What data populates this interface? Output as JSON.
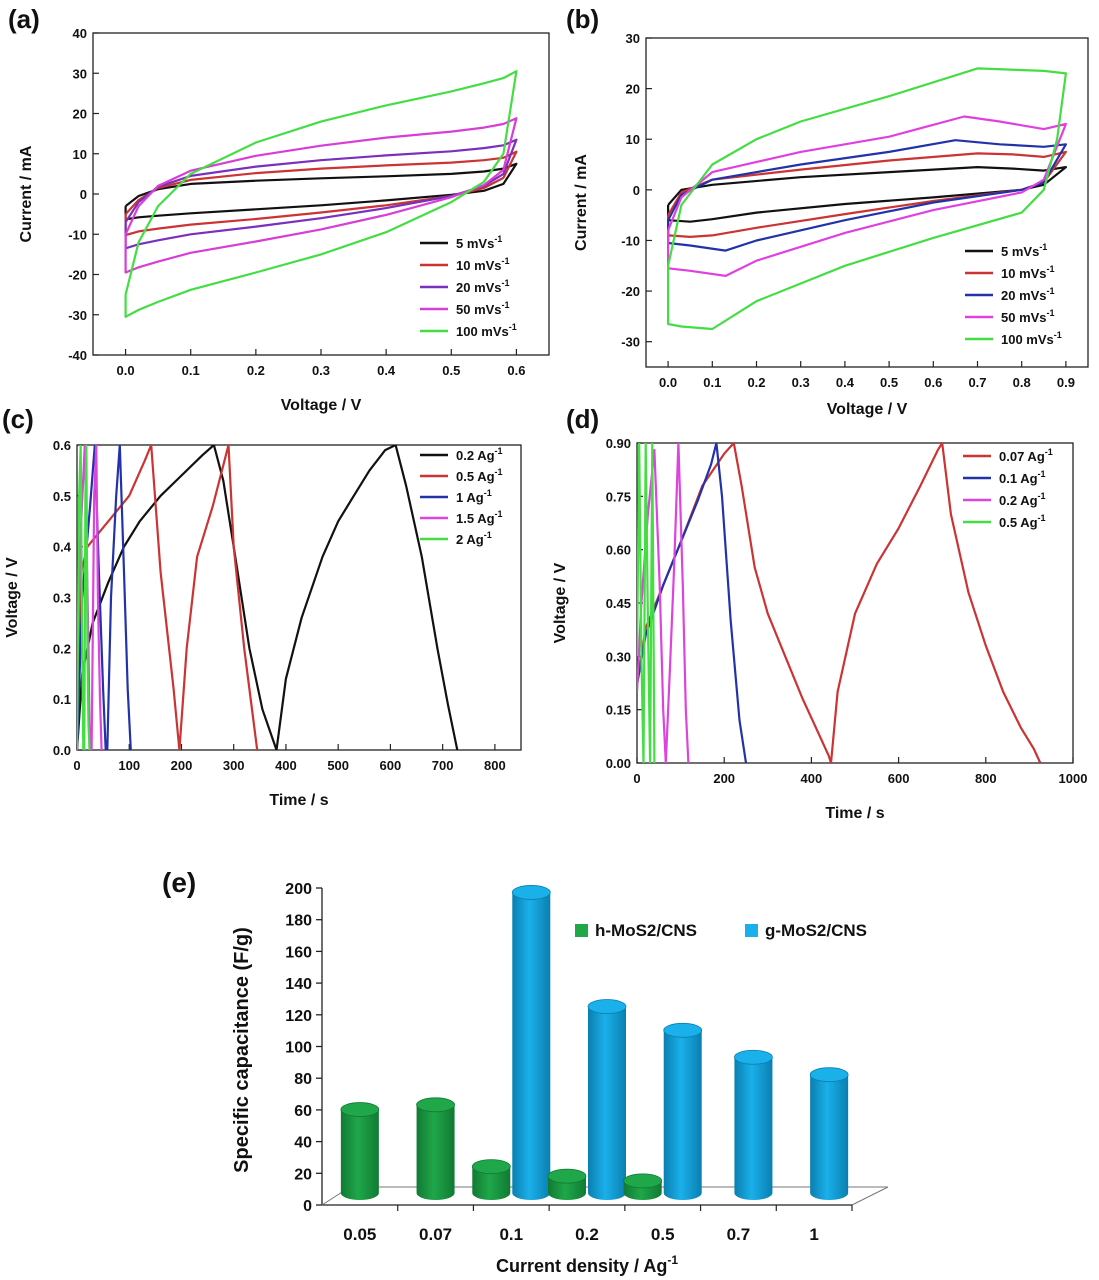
{
  "chart_data": [
    {
      "id": "a",
      "panel_label": "(a)",
      "type": "line",
      "xlabel": "Voltage / V",
      "ylabel": "Current / mA",
      "xlim": [
        -0.05,
        0.65
      ],
      "ylim": [
        -40,
        40
      ],
      "xticks": [
        "0.0",
        "0.1",
        "0.2",
        "0.3",
        "0.4",
        "0.5",
        "0.6"
      ],
      "yticks": [
        "-40",
        "-30",
        "-20",
        "-10",
        "0",
        "10",
        "20",
        "30",
        "40"
      ],
      "legend_position": "bottom-right",
      "series": [
        {
          "name": "5 mVs",
          "sup": "-1",
          "color": "#111111",
          "x": [
            0.0,
            0.02,
            0.05,
            0.1,
            0.2,
            0.3,
            0.4,
            0.5,
            0.55,
            0.58,
            0.6,
            0.6,
            0.58,
            0.55,
            0.5,
            0.4,
            0.3,
            0.2,
            0.1,
            0.05,
            0.02,
            0.0,
            0.0
          ],
          "y": [
            -3,
            -0.5,
            1.2,
            2.5,
            3.3,
            3.9,
            4.4,
            5.0,
            5.6,
            6.3,
            7.5,
            7.5,
            2.5,
            0.8,
            -0.2,
            -1.6,
            -2.8,
            -3.8,
            -4.8,
            -5.4,
            -5.8,
            -6.3,
            -3
          ]
        },
        {
          "name": "10 mVs",
          "sup": "-1",
          "color": "#cc3333",
          "x": [
            0.0,
            0.02,
            0.05,
            0.1,
            0.2,
            0.3,
            0.4,
            0.5,
            0.55,
            0.58,
            0.6,
            0.6,
            0.58,
            0.55,
            0.5,
            0.4,
            0.3,
            0.2,
            0.1,
            0.05,
            0.02,
            0.0,
            0.0
          ],
          "y": [
            -5,
            -1.5,
            1.5,
            3.5,
            5.2,
            6.3,
            7.1,
            7.8,
            8.4,
            9.0,
            10.5,
            10.5,
            4.0,
            1.5,
            -0.5,
            -2.8,
            -4.6,
            -6.2,
            -7.6,
            -8.6,
            -9.3,
            -10.2,
            -5
          ]
        },
        {
          "name": "20 mVs",
          "sup": "-1",
          "color": "#7b2fbe",
          "x": [
            0.0,
            0.02,
            0.05,
            0.1,
            0.2,
            0.3,
            0.4,
            0.5,
            0.55,
            0.58,
            0.6,
            0.6,
            0.58,
            0.55,
            0.5,
            0.4,
            0.3,
            0.2,
            0.1,
            0.05,
            0.02,
            0.0,
            0.0
          ],
          "y": [
            -7,
            -2,
            1.8,
            4.5,
            6.8,
            8.4,
            9.6,
            10.6,
            11.4,
            12.1,
            13.5,
            13.5,
            5.0,
            2.0,
            -0.5,
            -3.5,
            -6.0,
            -8.1,
            -10.0,
            -11.5,
            -12.5,
            -13.5,
            -7
          ]
        },
        {
          "name": "50 mVs",
          "sup": "-1",
          "color": "#d63ed6",
          "x": [
            0.0,
            0.02,
            0.05,
            0.1,
            0.2,
            0.3,
            0.4,
            0.5,
            0.55,
            0.58,
            0.6,
            0.6,
            0.58,
            0.55,
            0.5,
            0.4,
            0.3,
            0.2,
            0.1,
            0.05,
            0.02,
            0.0,
            0.0
          ],
          "y": [
            -10,
            -3,
            2.0,
            5.8,
            9.5,
            12.0,
            14.0,
            15.5,
            16.5,
            17.4,
            18.8,
            18.8,
            6.0,
            2.2,
            -0.8,
            -5.2,
            -8.8,
            -11.8,
            -14.6,
            -16.8,
            -18.2,
            -19.5,
            -10
          ]
        },
        {
          "name": "100 mVs",
          "sup": "-1",
          "color": "#44dd44",
          "x": [
            0.0,
            0.02,
            0.05,
            0.1,
            0.2,
            0.3,
            0.4,
            0.5,
            0.55,
            0.58,
            0.6,
            0.6,
            0.58,
            0.55,
            0.5,
            0.4,
            0.3,
            0.2,
            0.1,
            0.05,
            0.02,
            0.0,
            0.0
          ],
          "y": [
            -25,
            -12,
            -3,
            5.0,
            12.8,
            18.0,
            22.0,
            25.5,
            27.5,
            28.8,
            30.5,
            30.5,
            10.0,
            3.0,
            -2.0,
            -9.5,
            -15.0,
            -19.5,
            -23.8,
            -26.8,
            -28.8,
            -30.5,
            -25
          ]
        }
      ]
    },
    {
      "id": "b",
      "panel_label": "(b)",
      "type": "line",
      "xlabel": "Voltage / V",
      "ylabel": "Current / mA",
      "xlim": [
        -0.05,
        0.95
      ],
      "ylim": [
        -35,
        30
      ],
      "xticks": [
        "0.0",
        "0.1",
        "0.2",
        "0.3",
        "0.4",
        "0.5",
        "0.6",
        "0.7",
        "0.8",
        "0.9"
      ],
      "yticks": [
        "-30",
        "-20",
        "-10",
        "0",
        "10",
        "20",
        "30"
      ],
      "legend_position": "bottom-right",
      "series": [
        {
          "name": "5 mVs",
          "sup": "-1",
          "color": "#111111",
          "x": [
            0.0,
            0.03,
            0.1,
            0.3,
            0.5,
            0.7,
            0.78,
            0.85,
            0.9,
            0.9,
            0.85,
            0.8,
            0.6,
            0.4,
            0.2,
            0.1,
            0.05,
            0.0,
            0.0
          ],
          "y": [
            -3,
            0.0,
            1.0,
            2.5,
            3.5,
            4.5,
            4.2,
            3.8,
            4.5,
            4.5,
            1.0,
            0.0,
            -1.5,
            -2.8,
            -4.5,
            -5.8,
            -6.3,
            -6.0,
            -3
          ]
        },
        {
          "name": "10 mVs",
          "sup": "-1",
          "color": "#cc3333",
          "x": [
            0.0,
            0.03,
            0.1,
            0.3,
            0.5,
            0.7,
            0.78,
            0.85,
            0.9,
            0.9,
            0.85,
            0.8,
            0.6,
            0.4,
            0.2,
            0.1,
            0.05,
            0.0,
            0.0
          ],
          "y": [
            -5,
            -0.5,
            2.0,
            4.0,
            5.8,
            7.2,
            7.0,
            6.5,
            7.5,
            7.5,
            1.5,
            0.0,
            -2.2,
            -4.8,
            -7.5,
            -9.0,
            -9.3,
            -9.0,
            -5
          ]
        },
        {
          "name": "20 mVs",
          "sup": "-1",
          "color": "#2233aa",
          "x": [
            0.0,
            0.03,
            0.1,
            0.3,
            0.5,
            0.65,
            0.75,
            0.85,
            0.9,
            0.9,
            0.85,
            0.8,
            0.6,
            0.4,
            0.2,
            0.13,
            0.05,
            0.0,
            0.0
          ],
          "y": [
            -6,
            -1.0,
            2.0,
            5.0,
            7.5,
            9.8,
            9.0,
            8.5,
            9.0,
            9.0,
            1.5,
            0.0,
            -2.5,
            -6.0,
            -10.0,
            -12.0,
            -11.0,
            -10.5,
            -6
          ]
        },
        {
          "name": "50 mVs",
          "sup": "-1",
          "color": "#e040e0",
          "x": [
            0.0,
            0.03,
            0.1,
            0.3,
            0.5,
            0.67,
            0.75,
            0.85,
            0.9,
            0.9,
            0.85,
            0.8,
            0.6,
            0.4,
            0.2,
            0.13,
            0.05,
            0.0,
            0.0
          ],
          "y": [
            -8,
            -1.5,
            3.5,
            7.5,
            10.5,
            14.5,
            13.5,
            12.0,
            13.0,
            13.0,
            2.0,
            -0.5,
            -4.0,
            -8.5,
            -14.0,
            -17.0,
            -16.0,
            -15.5,
            -8
          ]
        },
        {
          "name": "100 mVs",
          "sup": "-1",
          "color": "#44dd44",
          "x": [
            0.0,
            0.03,
            0.1,
            0.2,
            0.3,
            0.5,
            0.7,
            0.85,
            0.9,
            0.9,
            0.88,
            0.85,
            0.8,
            0.6,
            0.4,
            0.2,
            0.1,
            0.03,
            0.0,
            0.0
          ],
          "y": [
            -15,
            -3.0,
            5.0,
            10.0,
            13.5,
            18.5,
            24.0,
            23.5,
            23.0,
            23.0,
            10.0,
            0.0,
            -4.5,
            -9.5,
            -15.0,
            -22.0,
            -27.5,
            -27.0,
            -26.5,
            -15
          ]
        }
      ]
    },
    {
      "id": "c",
      "panel_label": "(c)",
      "type": "line",
      "xlabel": "Time / s",
      "ylabel": "Voltage / V",
      "xlim": [
        0,
        850
      ],
      "ylim": [
        0,
        0.6
      ],
      "xticks": [
        "0",
        "100",
        "200",
        "300",
        "400",
        "500",
        "600",
        "700",
        "800"
      ],
      "yticks": [
        "0.0",
        "0.1",
        "0.2",
        "0.3",
        "0.4",
        "0.5",
        "0.6"
      ],
      "legend_position": "top-right",
      "series": [
        {
          "name": "0.2 Ag",
          "sup": "-1",
          "color": "#111111",
          "x": [
            0,
            10,
            30,
            60,
            90,
            120,
            160,
            200,
            240,
            262,
            280,
            300,
            330,
            355,
            382,
            382,
            400,
            430,
            470,
            500,
            530,
            560,
            590,
            610,
            630,
            660,
            690,
            710,
            728
          ],
          "y": [
            0,
            0.15,
            0.25,
            0.33,
            0.4,
            0.45,
            0.5,
            0.54,
            0.58,
            0.6,
            0.53,
            0.4,
            0.2,
            0.08,
            0,
            0,
            0.14,
            0.26,
            0.38,
            0.45,
            0.5,
            0.55,
            0.59,
            0.6,
            0.52,
            0.38,
            0.2,
            0.09,
            0
          ]
        },
        {
          "name": "0.5 Ag",
          "sup": "-1",
          "color": "#cc3333",
          "x": [
            0,
            8,
            20,
            60,
            100,
            130,
            142,
            160,
            185,
            196,
            196,
            210,
            230,
            260,
            280,
            290,
            300,
            320,
            335,
            345
          ],
          "y": [
            0,
            0.35,
            0.4,
            0.45,
            0.5,
            0.57,
            0.6,
            0.35,
            0.12,
            0,
            0,
            0.2,
            0.38,
            0.48,
            0.56,
            0.6,
            0.4,
            0.2,
            0.08,
            0
          ]
        },
        {
          "name": "1 Ag",
          "sup": "-1",
          "color": "#2233aa",
          "x": [
            0,
            10,
            25,
            34,
            42,
            50,
            55,
            58,
            65,
            75,
            82,
            90,
            97,
            103
          ],
          "y": [
            0,
            0.3,
            0.48,
            0.6,
            0.35,
            0.12,
            0,
            0,
            0.3,
            0.5,
            0.6,
            0.35,
            0.12,
            0
          ]
        },
        {
          "name": "1.5 Ag",
          "sup": "-1",
          "color": "#dd44dd",
          "x": [
            0,
            8,
            15,
            22,
            24,
            26,
            28,
            33,
            37,
            40,
            44,
            47
          ],
          "y": [
            0.15,
            0.45,
            0.6,
            0.2,
            0.05,
            0,
            0,
            0.5,
            0.6,
            0.3,
            0.1,
            0
          ]
        },
        {
          "name": "2 Ag",
          "sup": "-1",
          "color": "#44dd44",
          "x": [
            0,
            4,
            7,
            10,
            12,
            14,
            16,
            18,
            20,
            22,
            24
          ],
          "y": [
            0,
            0.5,
            0.6,
            0.2,
            0,
            0,
            0.5,
            0.6,
            0.2,
            0.05,
            0
          ]
        }
      ]
    },
    {
      "id": "d",
      "panel_label": "(d)",
      "type": "line",
      "xlabel": "Time / s",
      "ylabel": "Voltage / V",
      "xlim": [
        0,
        1000
      ],
      "ylim": [
        0,
        0.9
      ],
      "xticks": [
        "0",
        "200",
        "400",
        "600",
        "800",
        "1000"
      ],
      "yticks": [
        "0.00",
        "0.15",
        "0.30",
        "0.45",
        "0.60",
        "0.75",
        "0.90"
      ],
      "legend_position": "top-right",
      "series": [
        {
          "name": "0.07 Ag",
          "sup": "-1",
          "color": "#cc3333",
          "x": [
            0,
            20,
            60,
            100,
            150,
            200,
            222,
            240,
            270,
            300,
            340,
            380,
            410,
            440,
            445,
            460,
            500,
            550,
            600,
            650,
            690,
            700,
            720,
            760,
            800,
            840,
            880,
            910,
            925
          ],
          "y": [
            0.22,
            0.38,
            0.5,
            0.62,
            0.78,
            0.87,
            0.9,
            0.78,
            0.55,
            0.42,
            0.3,
            0.18,
            0.1,
            0.02,
            0,
            0.2,
            0.42,
            0.56,
            0.66,
            0.78,
            0.88,
            0.9,
            0.7,
            0.48,
            0.33,
            0.2,
            0.1,
            0.04,
            0
          ]
        },
        {
          "name": "0.1 Ag",
          "sup": "-1",
          "color": "#2233aa",
          "x": [
            0,
            20,
            60,
            100,
            140,
            170,
            182,
            195,
            215,
            235,
            250
          ],
          "y": [
            0.22,
            0.36,
            0.5,
            0.62,
            0.74,
            0.84,
            0.9,
            0.75,
            0.4,
            0.12,
            0
          ]
        },
        {
          "name": "0.2 Ag",
          "sup": "-1",
          "color": "#dd44dd",
          "x": [
            0,
            10,
            25,
            40,
            52,
            60,
            66,
            75,
            85,
            95,
            105,
            112,
            118
          ],
          "y": [
            0.2,
            0.45,
            0.7,
            0.88,
            0.5,
            0.15,
            0,
            0.25,
            0.55,
            0.9,
            0.5,
            0.15,
            0
          ]
        },
        {
          "name": "0.5 Ag",
          "sup": "-1",
          "color": "#44dd44",
          "x": [
            0,
            5,
            10,
            15,
            20,
            25,
            30,
            35,
            40
          ],
          "y": [
            0.3,
            0.9,
            0.3,
            0,
            0.9,
            0.4,
            0,
            0.9,
            0
          ]
        }
      ]
    },
    {
      "id": "e",
      "panel_label": "(e)",
      "type": "bar",
      "xlabel": "Current density / Ag",
      "xlabel_sup": "-1",
      "ylabel": "Specific capacitance (F/g)",
      "ylim": [
        0,
        200
      ],
      "yticks": [
        "0",
        "20",
        "40",
        "60",
        "80",
        "100",
        "120",
        "140",
        "160",
        "180",
        "200"
      ],
      "categories": [
        "0.05",
        "0.07",
        "0.1",
        "0.2",
        "0.5",
        "0.7",
        "1"
      ],
      "legend_position": "top-center",
      "series": [
        {
          "name": "h-MoS2/CNS",
          "color": "#1fa74a",
          "values": [
            64,
            67,
            28,
            22,
            19,
            null,
            null
          ]
        },
        {
          "name": "g-MoS2/CNS",
          "color": "#1ab0ea",
          "values": [
            null,
            null,
            201,
            129,
            114,
            97,
            86
          ]
        }
      ]
    }
  ]
}
